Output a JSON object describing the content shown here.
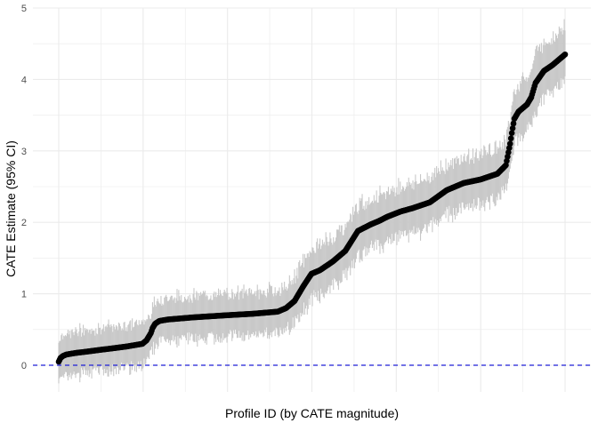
{
  "chart_data": {
    "type": "scatter",
    "title": "",
    "xlabel": "Profile ID (by CATE magnitude)",
    "ylabel": "CATE Estimate (95% CI)",
    "ylim": [
      0,
      5
    ],
    "yticks": [
      "0",
      "1",
      "2",
      "3",
      "4",
      "5"
    ],
    "xticks": [],
    "grid": true,
    "legend": "none",
    "reference_line": {
      "y": 0,
      "style": "dashed",
      "color": "#1f1fd6"
    },
    "colors": {
      "points": "#000000",
      "ci_band": "#c8c8c8",
      "grid": "#ebebeb",
      "axis_text": "#4d4d4d",
      "label_text": "#000000"
    },
    "n_points": 600,
    "x_range": [
      1,
      600
    ],
    "series": [
      {
        "x": [
          1,
          3,
          6,
          10,
          20,
          40,
          60,
          80,
          100,
          105,
          110,
          112,
          115,
          120,
          130,
          160,
          200,
          230,
          260,
          270,
          280,
          290,
          300,
          310,
          325,
          340,
          355,
          370,
          380,
          390,
          405,
          420,
          440,
          460,
          470,
          480,
          500,
          520,
          530,
          535,
          537,
          540,
          545,
          555,
          560,
          565,
          575,
          585,
          590,
          600
        ],
        "y": [
          0.05,
          0.1,
          0.13,
          0.15,
          0.17,
          0.2,
          0.23,
          0.26,
          0.3,
          0.35,
          0.45,
          0.52,
          0.58,
          0.62,
          0.64,
          0.67,
          0.7,
          0.72,
          0.75,
          0.8,
          0.9,
          1.1,
          1.28,
          1.33,
          1.45,
          1.6,
          1.88,
          1.97,
          2.02,
          2.08,
          2.15,
          2.2,
          2.28,
          2.45,
          2.5,
          2.55,
          2.6,
          2.68,
          2.8,
          3.1,
          3.25,
          3.45,
          3.55,
          3.65,
          3.75,
          3.95,
          4.12,
          4.2,
          4.25,
          4.35
        ],
        "ci_half_width": [
          0.3,
          0.3,
          0.3,
          0.3,
          0.3,
          0.3,
          0.3,
          0.3,
          0.3,
          0.3,
          0.3,
          0.3,
          0.3,
          0.3,
          0.3,
          0.3,
          0.3,
          0.3,
          0.3,
          0.3,
          0.32,
          0.35,
          0.35,
          0.35,
          0.35,
          0.35,
          0.35,
          0.35,
          0.35,
          0.35,
          0.35,
          0.35,
          0.35,
          0.35,
          0.35,
          0.35,
          0.35,
          0.35,
          0.35,
          0.35,
          0.35,
          0.38,
          0.4,
          0.4,
          0.4,
          0.4,
          0.4,
          0.4,
          0.4,
          0.4
        ]
      }
    ]
  }
}
